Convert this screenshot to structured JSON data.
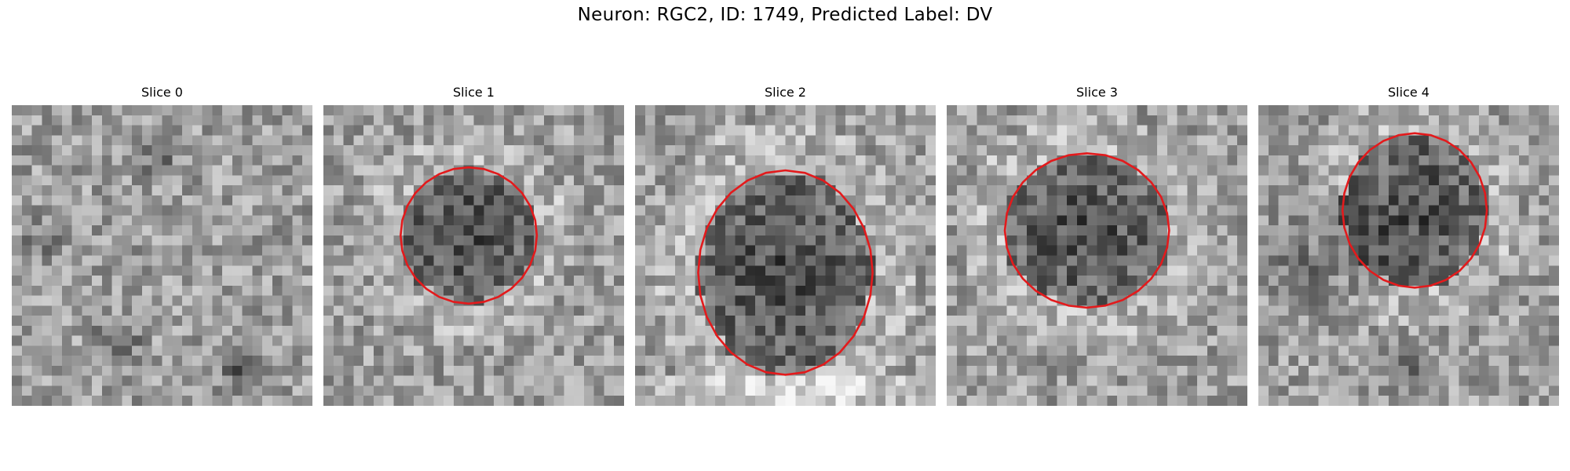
{
  "suptitle": "Neuron: RGC2, ID: 1749, Predicted Label: DV",
  "grid_size": 30,
  "outline_color": "#e31a1c",
  "slices": [
    {
      "title": "Slice 0",
      "seed": 11,
      "contour": null
    },
    {
      "title": "Slice 1",
      "seed": 23,
      "contour": {
        "cx": 14.5,
        "cy": 13,
        "rx": 6.8,
        "ry": 6.8
      }
    },
    {
      "title": "Slice 2",
      "seed": 37,
      "contour": {
        "cx": 15,
        "cy": 16.7,
        "rx": 8.7,
        "ry": 10.2
      }
    },
    {
      "title": "Slice 3",
      "seed": 41,
      "contour": {
        "cx": 14,
        "cy": 12.5,
        "rx": 8.2,
        "ry": 7.7
      }
    },
    {
      "title": "Slice 4",
      "seed": 53,
      "contour": {
        "cx": 15.6,
        "cy": 10.5,
        "rx": 7.2,
        "ry": 7.7
      }
    }
  ]
}
